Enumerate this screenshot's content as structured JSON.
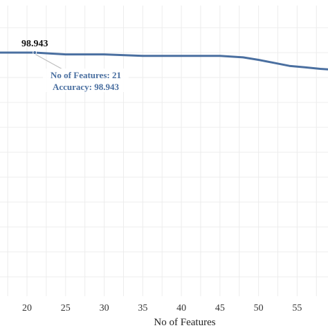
{
  "chart_data": {
    "type": "line",
    "title": "",
    "xlabel": "No of Features",
    "ylabel": "",
    "xlim": [
      16.5,
      59
    ],
    "ylim": [
      0,
      98.943
    ],
    "x_ticks": [
      20,
      25,
      30,
      35,
      40,
      45,
      50,
      55
    ],
    "grid": true,
    "legend": "none",
    "line_color": "#4a6fa0",
    "series": [
      {
        "x": [
          16.5,
          18,
          21,
          25,
          30,
          35,
          40,
          45,
          48,
          50,
          52,
          54,
          56,
          58,
          59
        ],
        "y": [
          98.943,
          98.943,
          98.943,
          98.925,
          98.925,
          98.91,
          98.91,
          98.91,
          98.895,
          98.87,
          98.84,
          98.81,
          98.795,
          98.78,
          98.775
        ]
      }
    ],
    "annotation": {
      "x": 21,
      "y": 98.943,
      "value_label": "98.943",
      "tooltip_lines": [
        "No of Features: 21",
        "Accuracy: 98.943"
      ]
    }
  }
}
